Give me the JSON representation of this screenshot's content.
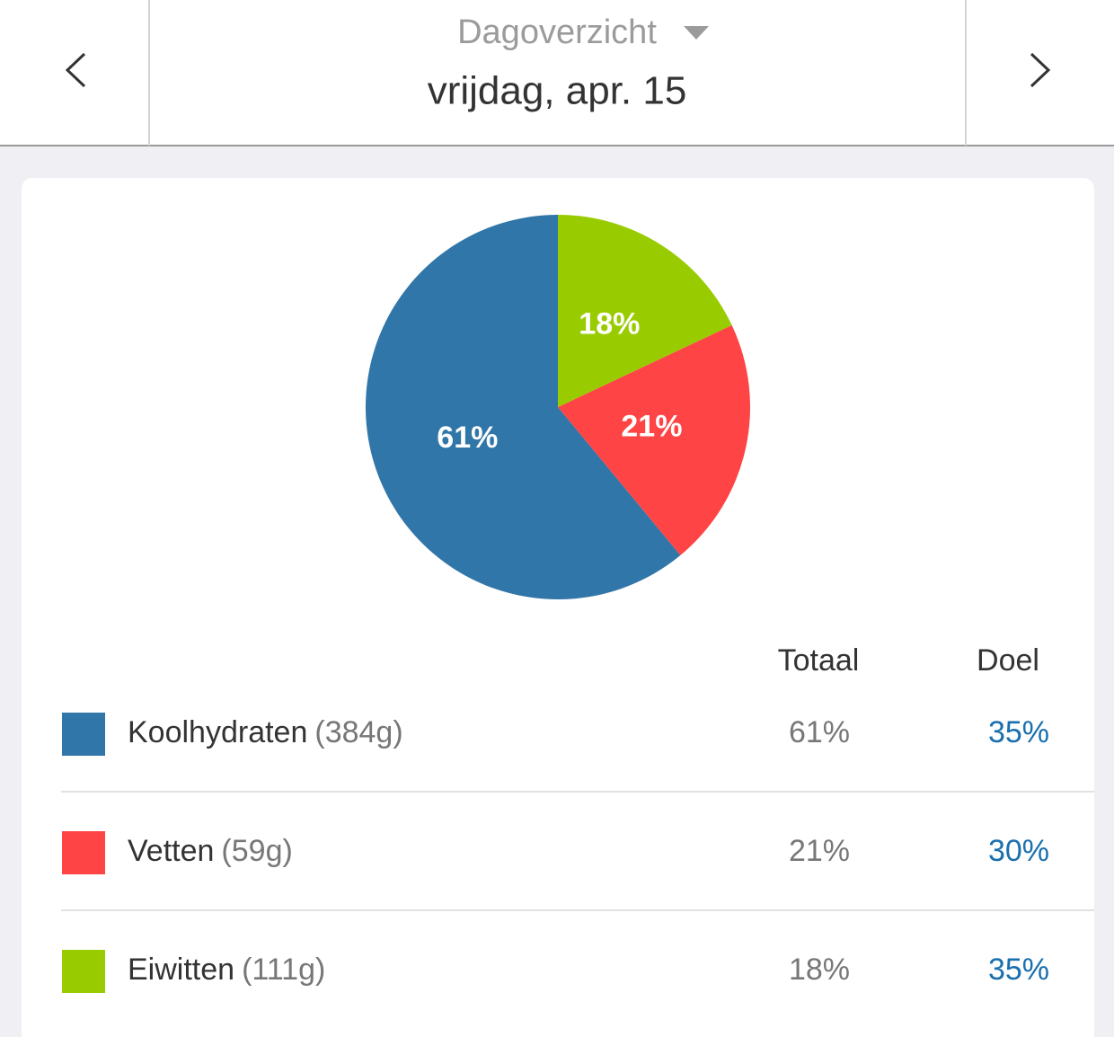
{
  "header": {
    "title": "Dagoverzicht",
    "date": "vrijdag, apr. 15"
  },
  "chart_data": {
    "type": "pie",
    "categories": [
      "Koolhydraten",
      "Vetten",
      "Eiwitten"
    ],
    "values": [
      61,
      21,
      18
    ],
    "value_labels": [
      "61%",
      "21%",
      "18%"
    ],
    "colors": [
      "#3176a8",
      "#fe4444",
      "#99cc00"
    ]
  },
  "table": {
    "columns": [
      "Totaal",
      "Doel"
    ],
    "rows": [
      {
        "amount": "(384g)",
        "goal": "35%"
      },
      {
        "amount": "(59g)",
        "goal": "30%"
      },
      {
        "amount": "(111g)",
        "goal": "35%"
      }
    ]
  }
}
